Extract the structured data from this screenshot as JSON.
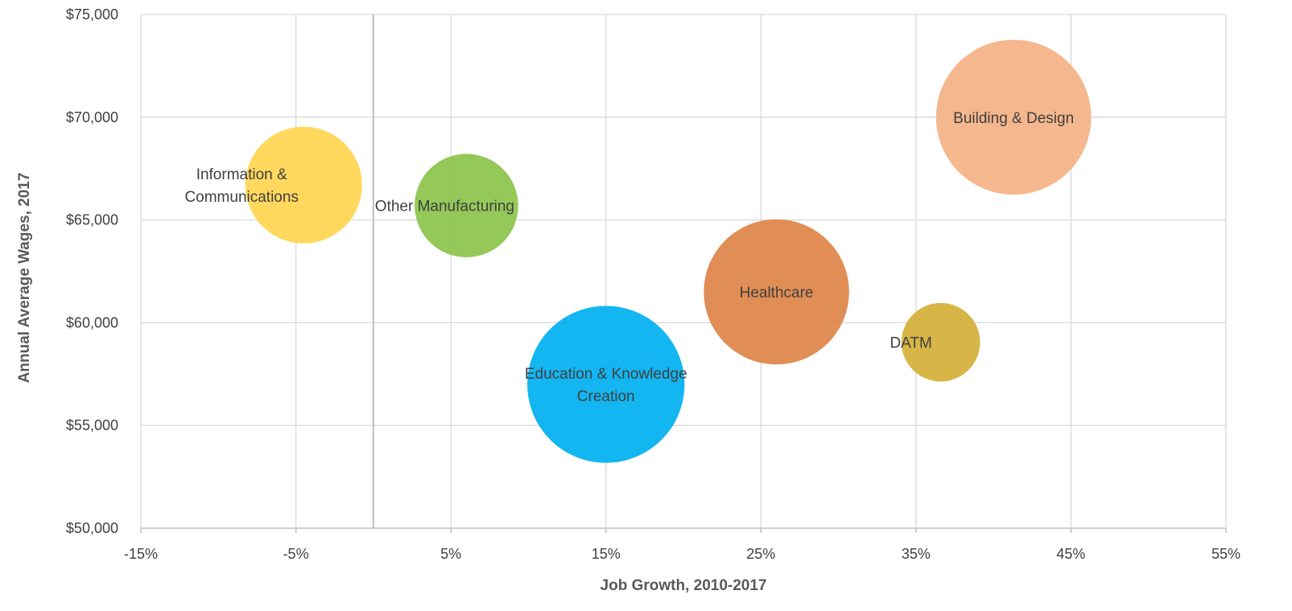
{
  "chart_data": {
    "type": "bubble",
    "xlabel": "Job Growth, 2010-2017",
    "ylabel": "Annual Average Wages, 2017",
    "xlim": [
      -15,
      55
    ],
    "ylim": [
      50000,
      75000
    ],
    "x_ticks": [
      -15,
      -5,
      5,
      15,
      25,
      35,
      45,
      55
    ],
    "x_tick_labels": [
      "-15%",
      "-5%",
      "5%",
      "15%",
      "25%",
      "35%",
      "45%",
      "55%"
    ],
    "y_ticks": [
      50000,
      55000,
      60000,
      65000,
      70000,
      75000
    ],
    "y_tick_labels": [
      "$50,000",
      "$55,000",
      "$60,000",
      "$65,000",
      "$70,000",
      "$75,000"
    ],
    "grid": true,
    "legend": "none",
    "series": [
      {
        "name": "Information & Communications",
        "label_lines": [
          "Information &",
          "Communications"
        ],
        "x": -4.5,
        "y": 66700,
        "size": 0.42,
        "color": "#FFD54F"
      },
      {
        "name": "Other Manufacturing",
        "label_lines": [
          "Other Manufacturing"
        ],
        "x": 6.0,
        "y": 65700,
        "size": 0.33,
        "color": "#8BC34A"
      },
      {
        "name": "Education & Knowledge Creation",
        "label_lines": [
          "Education & Knowledge",
          "Creation"
        ],
        "x": 15.0,
        "y": 57000,
        "size": 0.76,
        "color": "#00B0F0"
      },
      {
        "name": "Healthcare",
        "label_lines": [
          "Healthcare"
        ],
        "x": 26.0,
        "y": 61500,
        "size": 0.65,
        "color": "#DD8447"
      },
      {
        "name": "DATM",
        "label_lines": [
          "DATM"
        ],
        "x": 36.6,
        "y": 59050,
        "size": 0.19,
        "color": "#D4AF37"
      },
      {
        "name": "Building & Design",
        "label_lines": [
          "Building & Design"
        ],
        "x": 41.3,
        "y": 70000,
        "size": 0.74,
        "color": "#F4B183"
      }
    ]
  }
}
